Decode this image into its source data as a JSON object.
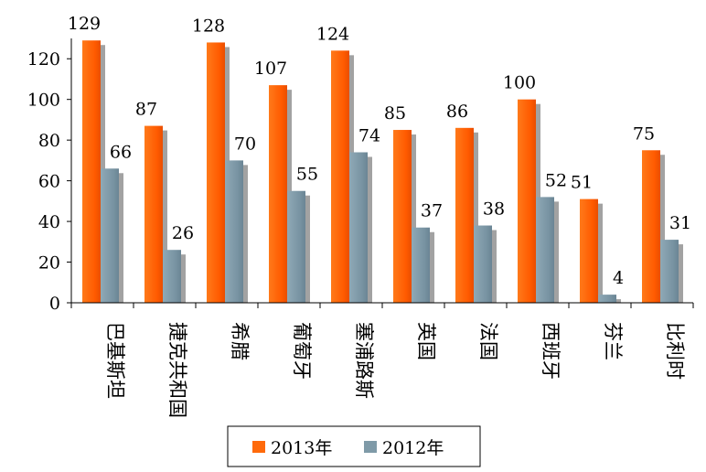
{
  "chart_data": {
    "type": "bar",
    "categories": [
      "巴基斯坦",
      "捷克共和国",
      "希腊",
      "葡萄牙",
      "塞浦路斯",
      "英国",
      "法国",
      "西班牙",
      "芬兰",
      "比利时"
    ],
    "series": [
      {
        "name": "2013年",
        "values": [
          129,
          87,
          128,
          107,
          124,
          85,
          86,
          100,
          51,
          75
        ],
        "color": "#ff6a0a"
      },
      {
        "name": "2012年",
        "values": [
          66,
          26,
          70,
          55,
          74,
          37,
          38,
          52,
          4,
          31
        ],
        "color": "#7f9aa8"
      }
    ],
    "yticks": [
      0,
      20,
      40,
      60,
      80,
      100,
      120
    ],
    "ylim": [
      0,
      130
    ],
    "grid": false,
    "legend_position": "bottom",
    "data_labels": true
  }
}
